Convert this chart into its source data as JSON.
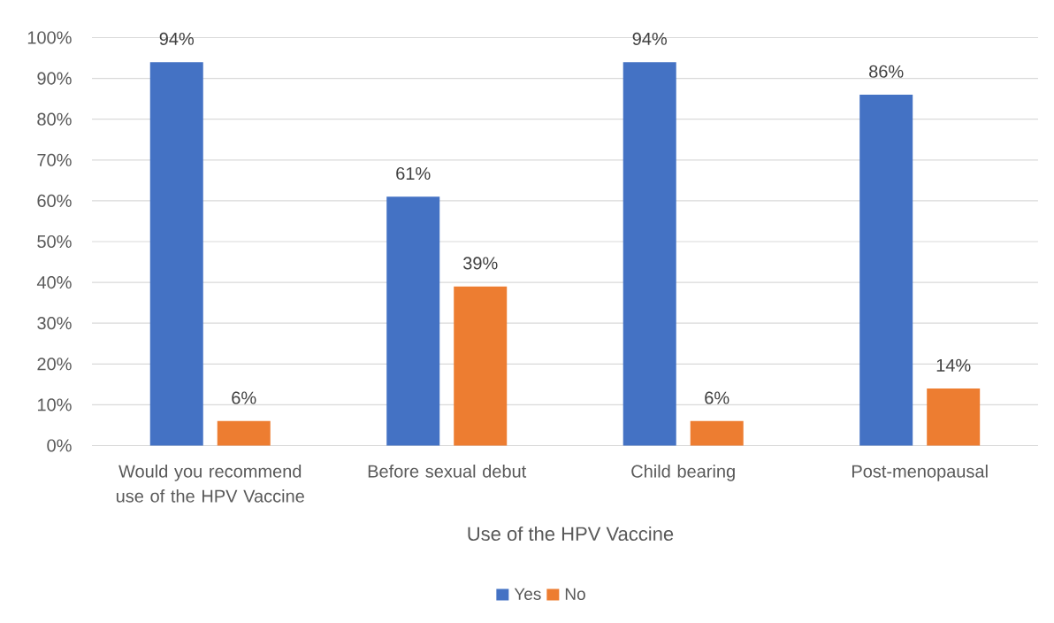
{
  "chart_data": {
    "type": "bar",
    "categories": [
      "Would you recommend use of the HPV Vaccine",
      "Before sexual debut",
      "Child bearing",
      "Post-menopausal"
    ],
    "series": [
      {
        "name": "Yes",
        "color": "#4472c4",
        "values": [
          94,
          61,
          94,
          86
        ],
        "value_labels": [
          "94%",
          "61%",
          "94%",
          "86%"
        ]
      },
      {
        "name": "No",
        "color": "#ed7d31",
        "values": [
          6,
          39,
          6,
          14
        ],
        "value_labels": [
          "6%",
          "39%",
          "6%",
          "14%"
        ]
      }
    ],
    "xlabel": "Use of the HPV Vaccine",
    "ylim": [
      0,
      100
    ],
    "yticks": [
      {
        "value": 0,
        "label": "0%"
      },
      {
        "value": 10,
        "label": "10%"
      },
      {
        "value": 20,
        "label": "20%"
      },
      {
        "value": 30,
        "label": "30%"
      },
      {
        "value": 40,
        "label": "40%"
      },
      {
        "value": 50,
        "label": "50%"
      },
      {
        "value": 60,
        "label": "60%"
      },
      {
        "value": 70,
        "label": "70%"
      },
      {
        "value": 80,
        "label": "80%"
      },
      {
        "value": 90,
        "label": "90%"
      },
      {
        "value": 100,
        "label": "100%"
      }
    ],
    "grid": "y",
    "legend": "bottom"
  }
}
